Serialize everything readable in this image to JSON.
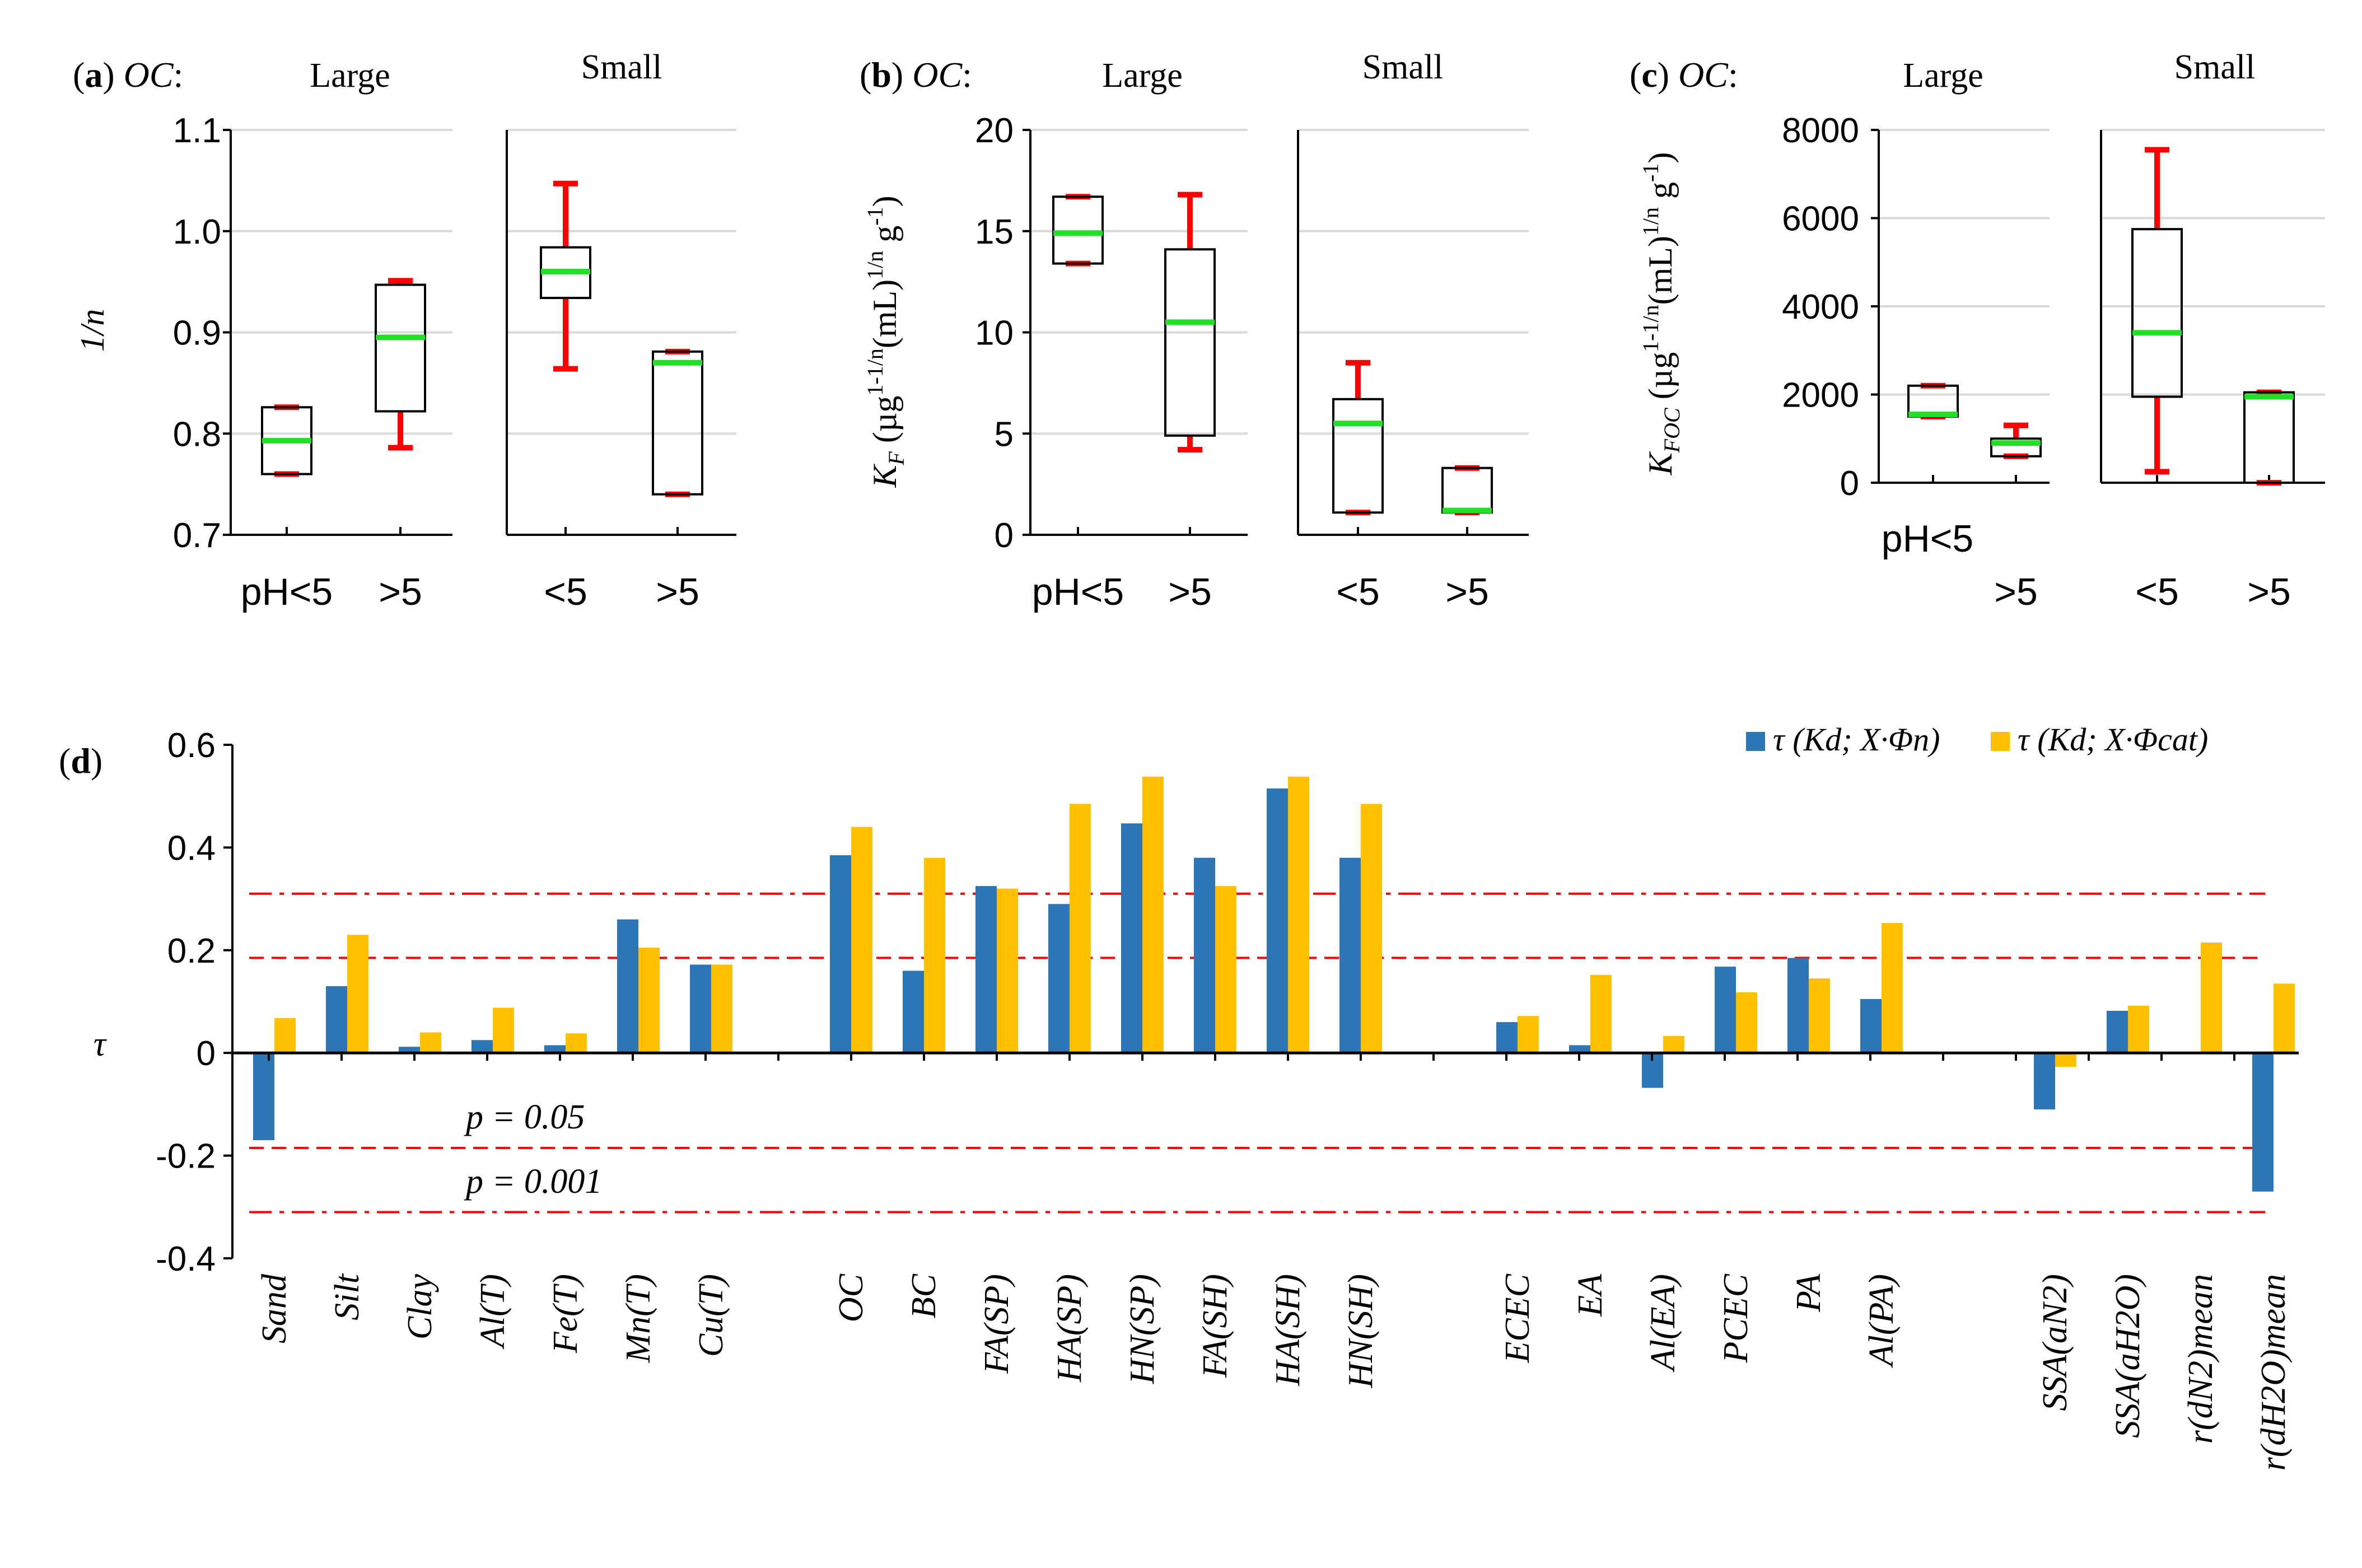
{
  "colors": {
    "axis": "#000000",
    "grid": "#d9d9d9",
    "whisker": "#ff0000",
    "median": "#22e026",
    "box_edge": "#000000",
    "series_n": "#2e75b6",
    "series_cat": "#ffc000",
    "sig_line": "#ff0000"
  },
  "chart_data": [
    {
      "id": "a",
      "type": "box",
      "panel_label": "a",
      "header_prefix": "OC",
      "group_titles": [
        "Large",
        "Small"
      ],
      "ylabel": "1/n",
      "ylim": [
        0.7,
        1.1
      ],
      "yticks": [
        "0.7",
        "0.8",
        "0.9",
        "1.0",
        "1.1"
      ],
      "tick_values": [
        0.7,
        0.8,
        0.9,
        1.0,
        1.1
      ],
      "groups": [
        {
          "name": "Large",
          "boxes": [
            {
              "label": "pH<5",
              "min": 0.76,
              "q1": 0.76,
              "median": 0.793,
              "q3": 0.826,
              "max": 0.826
            },
            {
              "label": ">5",
              "min": 0.786,
              "q1": 0.822,
              "median": 0.895,
              "q3": 0.947,
              "max": 0.951
            }
          ]
        },
        {
          "name": "Small",
          "boxes": [
            {
              "label": "<5",
              "min": 0.864,
              "q1": 0.934,
              "median": 0.96,
              "q3": 0.984,
              "max": 1.047
            },
            {
              "label": ">5",
              "min": 0.74,
              "q1": 0.74,
              "median": 0.87,
              "q3": 0.881,
              "max": 0.881
            }
          ]
        }
      ]
    },
    {
      "id": "b",
      "type": "box",
      "panel_label": "b",
      "header_prefix": "OC",
      "group_titles": [
        "Large",
        "Small"
      ],
      "ylabel": "K_F (µg^(1-1/n) (mL)^(1/n) g^-1)",
      "ylim": [
        0,
        20
      ],
      "yticks": [
        "0",
        "5",
        "10",
        "15",
        "20"
      ],
      "tick_values": [
        0,
        5,
        10,
        15,
        20
      ],
      "groups": [
        {
          "name": "Large",
          "boxes": [
            {
              "label": "pH<5",
              "min": 13.4,
              "q1": 13.4,
              "median": 14.9,
              "q3": 16.7,
              "max": 16.7
            },
            {
              "label": ">5",
              "min": 4.2,
              "q1": 4.9,
              "median": 10.5,
              "q3": 14.1,
              "max": 16.8
            }
          ]
        },
        {
          "name": "Small",
          "boxes": [
            {
              "label": "<5",
              "min": 1.1,
              "q1": 1.1,
              "median": 5.5,
              "q3": 6.7,
              "max": 8.5
            },
            {
              "label": ">5",
              "min": 1.1,
              "q1": 1.1,
              "median": 1.2,
              "q3": 3.3,
              "max": 3.3
            }
          ]
        }
      ]
    },
    {
      "id": "c",
      "type": "box",
      "panel_label": "c",
      "header_prefix": "OC",
      "group_titles": [
        "Large",
        "Small"
      ],
      "ylabel": "K_FOC (µg^(1-1/n) (mL)^(1/n) g^-1)",
      "ylim": [
        0,
        8000
      ],
      "yticks": [
        "0",
        "2000",
        "4000",
        "6000",
        "8000"
      ],
      "tick_values": [
        0,
        2000,
        4000,
        6000,
        8000
      ],
      "groups": [
        {
          "name": "Large",
          "boxes": [
            {
              "label": "pH<5",
              "min": 1500,
              "q1": 1500,
              "median": 1550,
              "q3": 2200,
              "max": 2200
            },
            {
              "label": ">5",
              "min": 600,
              "q1": 600,
              "median": 900,
              "q3": 1000,
              "max": 1300
            }
          ]
        },
        {
          "name": "Small",
          "boxes": [
            {
              "label": "<5",
              "min": 250,
              "q1": 1950,
              "median": 3400,
              "q3": 5750,
              "max": 7550
            },
            {
              "label": ">5",
              "min": 0,
              "q1": 0,
              "median": 1950,
              "q3": 2050,
              "max": 2050
            }
          ]
        }
      ]
    },
    {
      "id": "d",
      "type": "bar",
      "panel_label": "d",
      "ylabel": "τ",
      "ylim": [
        -0.4,
        0.6
      ],
      "yticks": [
        "-0.4",
        "-0.2",
        "0",
        "0.2",
        "0.4",
        "0.6"
      ],
      "tick_values": [
        -0.4,
        -0.2,
        0,
        0.2,
        0.4,
        0.6
      ],
      "category_groups": [
        [
          "Sand",
          "Silt",
          "Clay",
          "Al(T)",
          "Fe(T)",
          "Mn(T)",
          "Cu(T)"
        ],
        [
          "OC",
          "BC",
          "FA(SP)",
          "HA(SP)",
          "HN(SP)",
          "FA(SH)",
          "HA(SH)",
          "HN(SH)"
        ],
        [
          "ECEC",
          "EA",
          "Al(EA)",
          "PCEC",
          "PA",
          "Al(PA)"
        ],
        [
          "SSA(aN2)",
          "SSA(aH2O)",
          "r(dN2)mean",
          "r(dH2O)mean"
        ]
      ],
      "series": [
        {
          "name": "τ (Kd; X·Φn)",
          "values": [
            -0.17,
            0.13,
            0.012,
            0.025,
            0.015,
            0.26,
            0.172,
            0.385,
            0.16,
            0.325,
            0.29,
            0.447,
            0.38,
            0.515,
            0.38,
            0.06,
            0.015,
            -0.068,
            0.168,
            0.185,
            0.105,
            -0.11,
            0.082,
            0.0,
            -0.27
          ]
        },
        {
          "name": "τ (Kd; X·Φcat)",
          "values": [
            0.068,
            0.23,
            0.04,
            0.088,
            0.038,
            0.205,
            0.172,
            0.44,
            0.38,
            0.32,
            0.485,
            0.538,
            0.325,
            0.538,
            0.485,
            0.072,
            0.152,
            0.033,
            0.118,
            0.145,
            0.253,
            -0.027,
            0.092,
            0.215,
            0.135
          ]
        }
      ],
      "significance_lines": [
        {
          "label": "p = 0.05",
          "value": 0.185,
          "style": "dashed"
        },
        {
          "label": "p = 0.001",
          "value": 0.31,
          "style": "dash-dot"
        }
      ],
      "legend_position": "top-right"
    }
  ]
}
